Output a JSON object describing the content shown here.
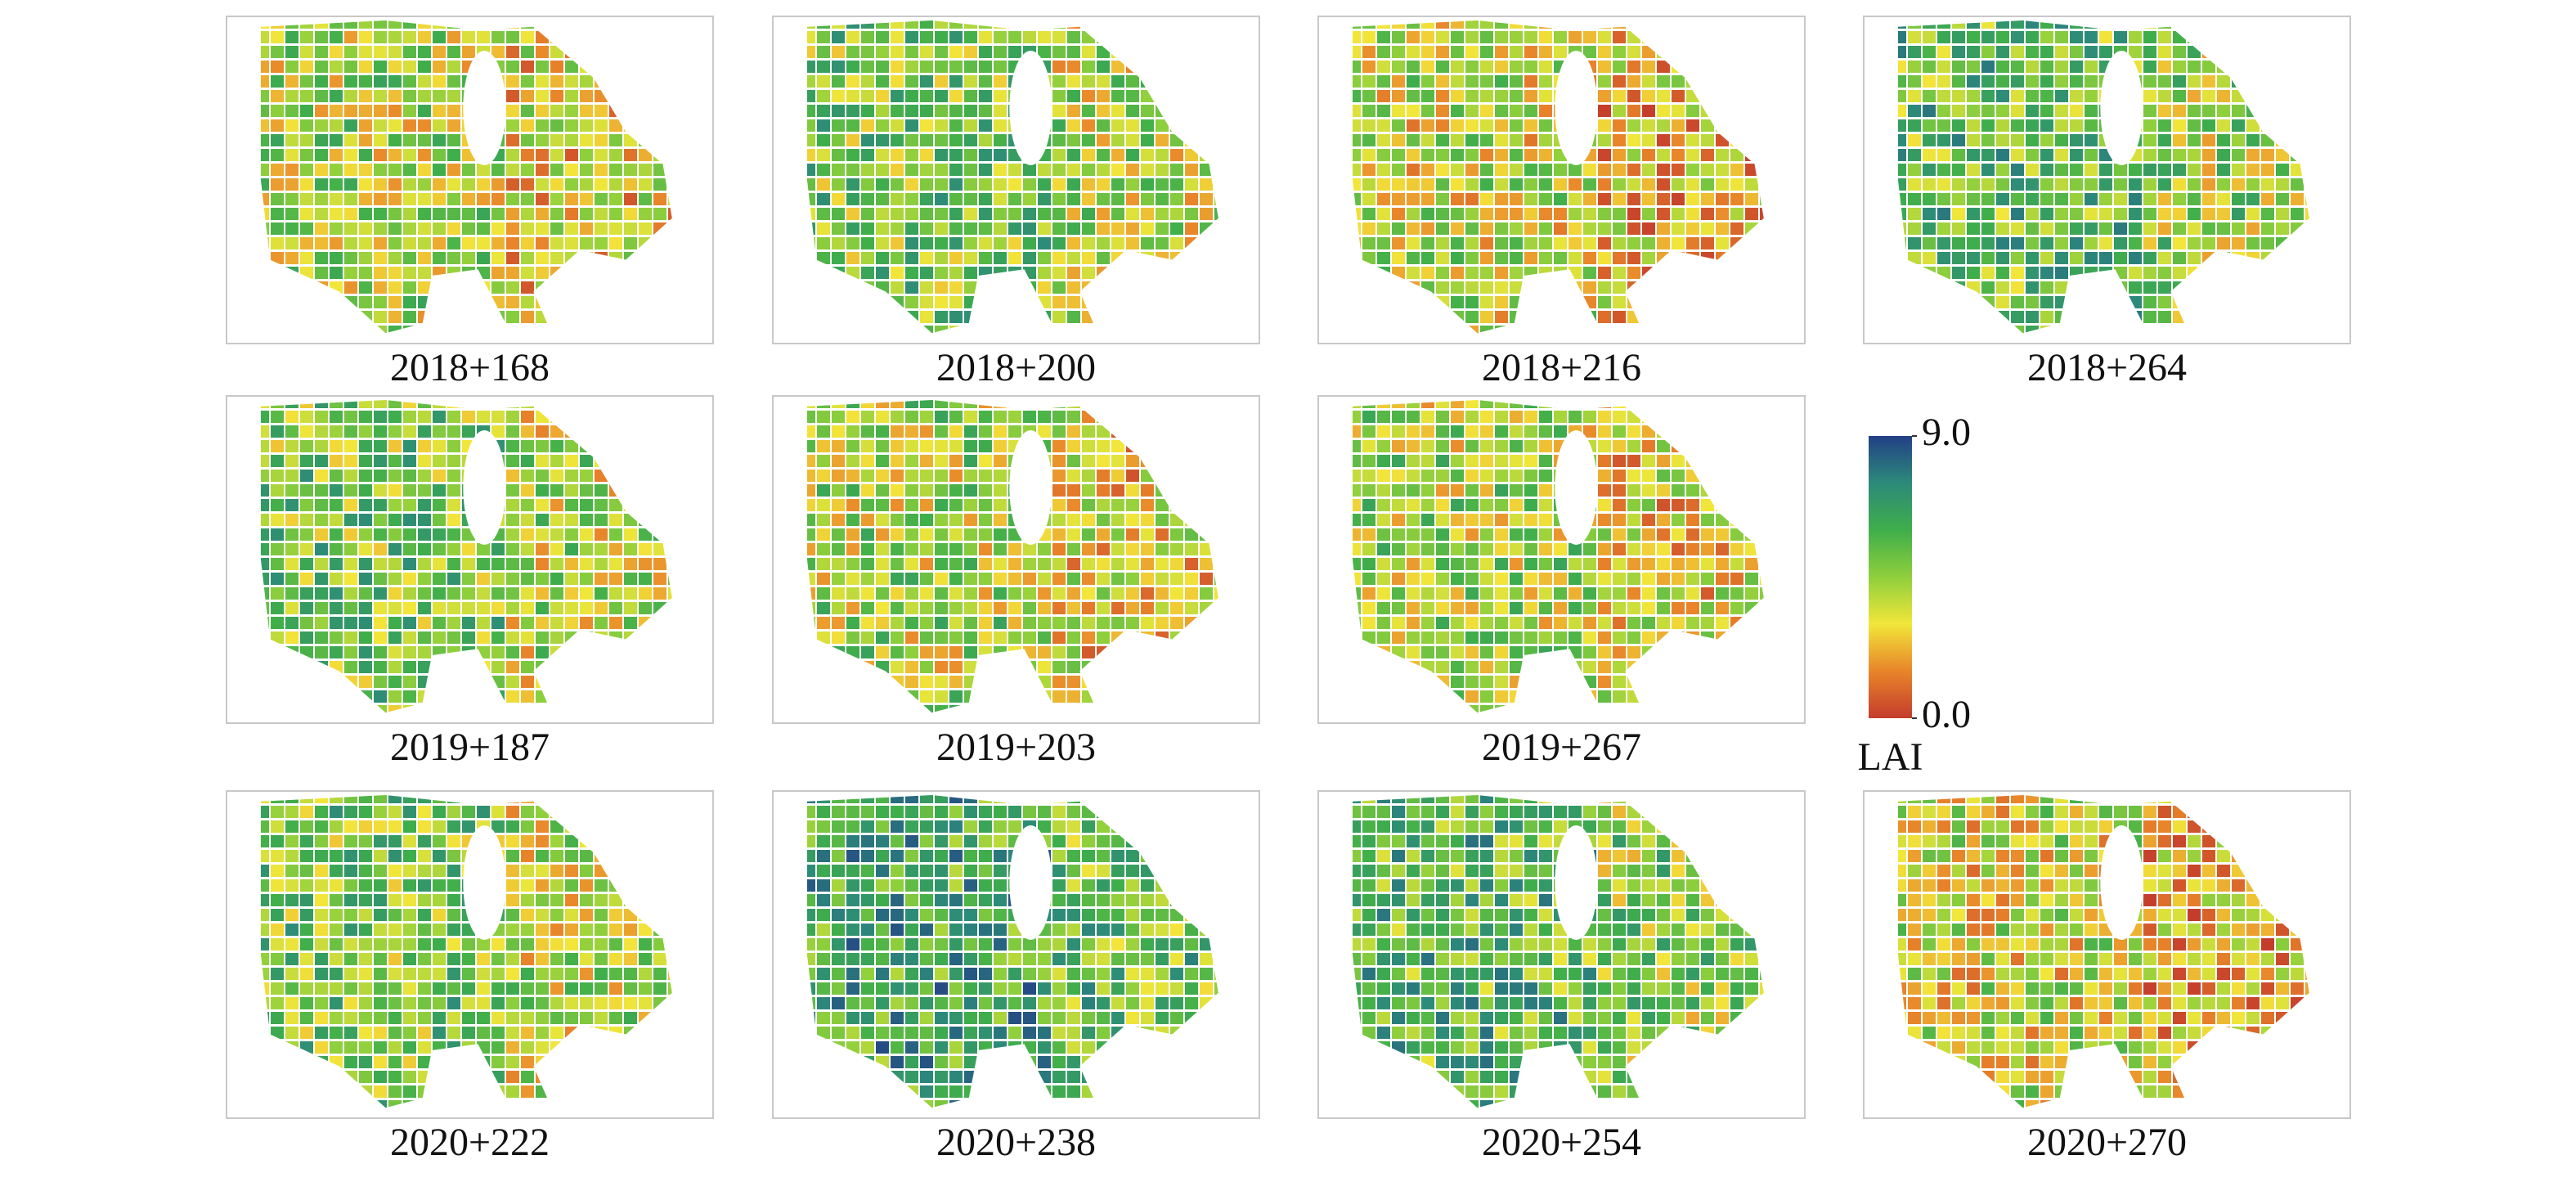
{
  "panels": [
    {
      "label": "2018+168"
    },
    {
      "label": "2018+200"
    },
    {
      "label": "2018+216"
    },
    {
      "label": "2018+264"
    },
    {
      "label": "2019+187"
    },
    {
      "label": "2019+203"
    },
    {
      "label": "2019+267"
    },
    {
      "label": "2020+222"
    },
    {
      "label": "2020+238"
    },
    {
      "label": "2020+254"
    },
    {
      "label": "2020+270"
    }
  ],
  "colorbar": {
    "label": "LAI",
    "lim": [
      0,
      9
    ],
    "ticks": [
      {
        "value": 0,
        "label": "0.0"
      },
      {
        "value": 9,
        "label": "9.0"
      }
    ],
    "colors": [
      "#c43c2c",
      "#e8852a",
      "#f2e63a",
      "#8fcf3c",
      "#3fae4a",
      "#2c8a7a",
      "#233f85"
    ]
  }
}
